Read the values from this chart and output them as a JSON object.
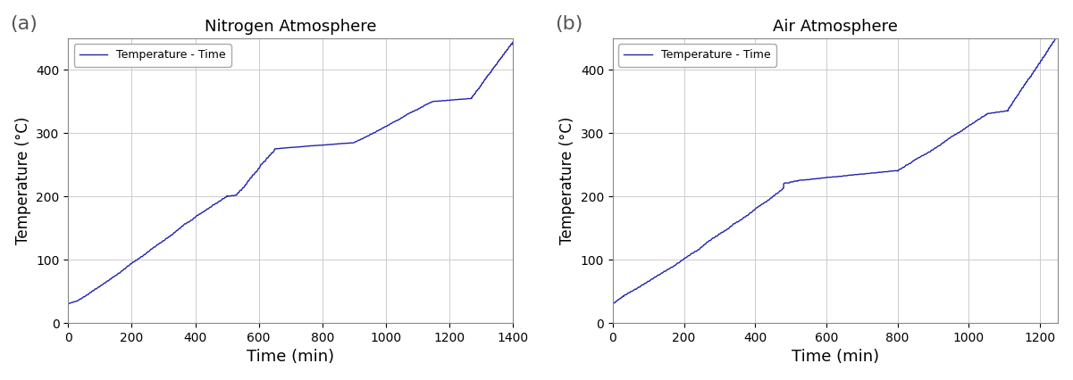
{
  "title_a": "Nitrogen Atmosphere",
  "title_b": "Air Atmosphere",
  "label_a": "(a)",
  "label_b": "(b)",
  "legend_label": "Temperature - Time",
  "xlabel": "Time (min)",
  "ylabel": "Temperature (°C)",
  "line_color": "#2222aa",
  "line_width": 1.0,
  "bg_color": "#ffffff",
  "grid_color": "#cccccc",
  "xlim_a": [
    0,
    1400
  ],
  "xlim_b": [
    0,
    1250
  ],
  "ylim": [
    0,
    450
  ],
  "xticks_a": [
    0,
    200,
    400,
    600,
    800,
    1000,
    1200,
    1400
  ],
  "xticks_b": [
    0,
    200,
    400,
    600,
    800,
    1000,
    1200
  ],
  "yticks": [
    0,
    100,
    200,
    300,
    400
  ],
  "title_fontsize": 13,
  "label_fontsize": 16,
  "axis_label_fontsize": 12,
  "tick_fontsize": 10
}
